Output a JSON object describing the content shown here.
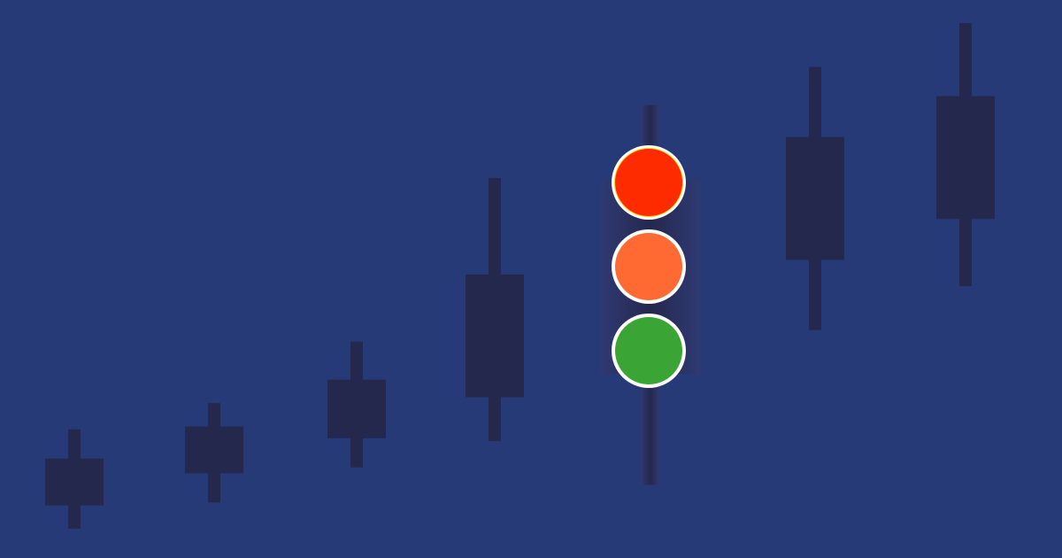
{
  "colors": {
    "background": "#263a78",
    "candle": "#25284d",
    "housing_edge": "#2f3a73",
    "housing_center": "#25284d",
    "light_outline": "#ffffff",
    "red_light": "#ff2b00",
    "orange_light": "#ff6a33",
    "green_light": "#3aa535"
  },
  "candles": [
    {
      "name": "candle-1",
      "low": 1,
      "high": 4.4,
      "open": 1.8,
      "close": 3.4
    },
    {
      "name": "candle-2",
      "low": 1.9,
      "high": 5.3,
      "open": 2.9,
      "close": 4.5
    },
    {
      "name": "candle-3",
      "low": 3.1,
      "high": 7.4,
      "open": 4.1,
      "close": 6.1
    },
    {
      "name": "candle-4",
      "low": 4.0,
      "high": 13.0,
      "open": 5.5,
      "close": 9.7
    },
    {
      "name": "candle-5",
      "low": 2.5,
      "high": 15.5,
      "open": 6.3,
      "close": 12.9
    },
    {
      "name": "candle-6",
      "low": 7.8,
      "high": 16.8,
      "open": 10.2,
      "close": 14.4
    },
    {
      "name": "candle-7",
      "low": 9.3,
      "high": 18.3,
      "open": 11.6,
      "close": 15.8
    }
  ],
  "traffic_light": {
    "icon": "traffic-light-icon",
    "lights": [
      {
        "name": "red-light",
        "color": "#ff2b00"
      },
      {
        "name": "orange-light",
        "color": "#ff6a33"
      },
      {
        "name": "green-light",
        "color": "#3aa535"
      }
    ]
  }
}
